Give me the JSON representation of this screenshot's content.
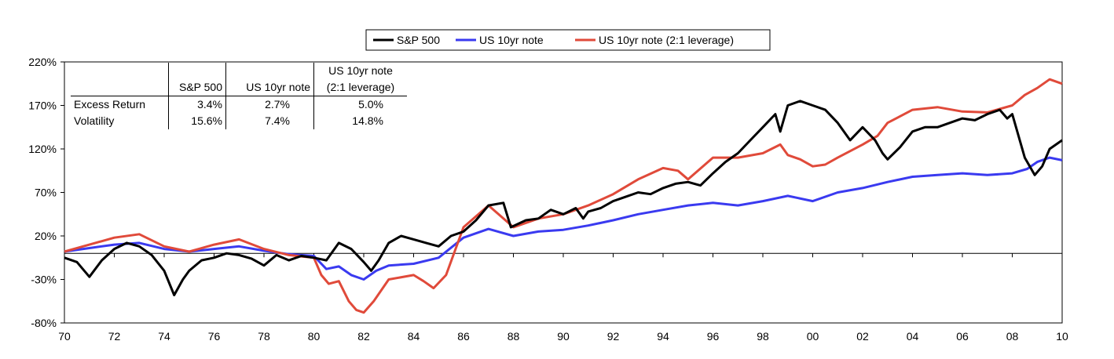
{
  "chart_data": {
    "type": "line",
    "legend": {
      "position": "top",
      "entries": [
        "S&P 500",
        "US 10yr note",
        "US 10yr note (2:1 leverage)"
      ]
    },
    "y_ticks": [
      "220%",
      "170%",
      "120%",
      "70%",
      "20%",
      "-30%",
      "-80%"
    ],
    "x_ticks": [
      "70",
      "72",
      "74",
      "76",
      "78",
      "80",
      "82",
      "84",
      "86",
      "88",
      "90",
      "92",
      "94",
      "96",
      "98",
      "00",
      "02",
      "04",
      "06",
      "08",
      "10"
    ],
    "ylim": [
      -80,
      220
    ],
    "xlim": [
      1970,
      2010
    ],
    "grid": false,
    "series": [
      {
        "name": "S&P 500",
        "color": "#000000",
        "x": [
          1970.0,
          1970.5,
          1971.0,
          1971.5,
          1972.0,
          1972.5,
          1973.0,
          1973.5,
          1974.0,
          1974.4,
          1974.75,
          1975.0,
          1975.5,
          1976.0,
          1976.5,
          1977.0,
          1977.5,
          1978.0,
          1978.5,
          1979.0,
          1979.5,
          1980.0,
          1980.5,
          1981.0,
          1981.5,
          1982.0,
          1982.3,
          1982.6,
          1983.0,
          1983.5,
          1984.0,
          1984.5,
          1985.0,
          1985.5,
          1986.0,
          1986.5,
          1987.0,
          1987.6,
          1987.9,
          1988.5,
          1989.0,
          1989.5,
          1990.0,
          1990.5,
          1990.8,
          1991.0,
          1991.5,
          1992.0,
          1992.5,
          1993.0,
          1993.5,
          1994.0,
          1994.5,
          1995.0,
          1995.5,
          1996.0,
          1996.5,
          1997.0,
          1997.5,
          1998.0,
          1998.5,
          1998.7,
          1999.0,
          1999.5,
          2000.0,
          2000.5,
          2001.0,
          2001.5,
          2002.0,
          2002.5,
          2002.8,
          2003.0,
          2003.5,
          2004.0,
          2004.5,
          2005.0,
          2005.5,
          2006.0,
          2006.5,
          2007.0,
          2007.5,
          2007.8,
          2008.0,
          2008.5,
          2008.9,
          2009.2,
          2009.5,
          2010.0
        ],
        "y": [
          -5,
          -10,
          -27,
          -8,
          5,
          12,
          8,
          -2,
          -20,
          -48,
          -30,
          -20,
          -8,
          -5,
          0,
          -2,
          -6,
          -14,
          -2,
          -8,
          -3,
          -5,
          -8,
          12,
          5,
          -10,
          -20,
          -8,
          12,
          20,
          16,
          12,
          8,
          20,
          25,
          38,
          55,
          58,
          30,
          38,
          40,
          50,
          45,
          52,
          40,
          48,
          52,
          60,
          65,
          70,
          68,
          75,
          80,
          82,
          78,
          92,
          105,
          115,
          130,
          145,
          160,
          140,
          170,
          175,
          170,
          165,
          150,
          130,
          145,
          130,
          115,
          108,
          122,
          140,
          145,
          145,
          150,
          155,
          153,
          160,
          165,
          155,
          160,
          110,
          90,
          100,
          120,
          130
        ]
      },
      {
        "name": "US 10yr note",
        "color": "#3a3af0",
        "x": [
          1970,
          1971,
          1972,
          1973,
          1974,
          1975,
          1976,
          1977,
          1978,
          1979,
          1980,
          1980.5,
          1981,
          1981.5,
          1982,
          1982.5,
          1983,
          1984,
          1985,
          1986,
          1987,
          1988,
          1989,
          1990,
          1991,
          1992,
          1993,
          1994,
          1995,
          1996,
          1997,
          1998,
          1999,
          2000,
          2001,
          2002,
          2003,
          2004,
          2005,
          2006,
          2007,
          2008,
          2008.6,
          2009,
          2009.5,
          2010
        ],
        "y": [
          2,
          6,
          10,
          12,
          5,
          2,
          5,
          8,
          3,
          -1,
          -3,
          -18,
          -15,
          -25,
          -30,
          -20,
          -14,
          -12,
          -5,
          18,
          28,
          20,
          25,
          27,
          32,
          38,
          45,
          50,
          55,
          58,
          55,
          60,
          66,
          60,
          70,
          75,
          82,
          88,
          90,
          92,
          90,
          92,
          97,
          105,
          110,
          107
        ]
      },
      {
        "name": "US 10yr note (2:1 leverage)",
        "color": "#e04a3a",
        "x": [
          1970,
          1971,
          1972,
          1973,
          1974,
          1975,
          1976,
          1977,
          1978,
          1979,
          1980,
          1980.3,
          1980.6,
          1981,
          1981.4,
          1981.7,
          1982,
          1982.4,
          1983,
          1984,
          1984.4,
          1984.8,
          1985.3,
          1986,
          1987,
          1988,
          1989,
          1990,
          1991,
          1992,
          1993,
          1994,
          1994.6,
          1995,
          1996,
          1997,
          1998,
          1998.7,
          1999,
          1999.5,
          2000,
          2000.5,
          2001,
          2002,
          2002.6,
          2003,
          2004,
          2005,
          2006,
          2007,
          2008,
          2008.5,
          2009,
          2009.5,
          2010
        ],
        "y": [
          2,
          10,
          18,
          22,
          8,
          2,
          10,
          16,
          5,
          -2,
          -5,
          -25,
          -35,
          -32,
          -55,
          -65,
          -68,
          -55,
          -30,
          -25,
          -32,
          -40,
          -25,
          30,
          55,
          30,
          40,
          45,
          55,
          68,
          85,
          98,
          95,
          85,
          110,
          110,
          115,
          125,
          113,
          108,
          100,
          102,
          110,
          125,
          135,
          150,
          165,
          168,
          163,
          162,
          170,
          182,
          190,
          200,
          195
        ]
      }
    ]
  },
  "table": {
    "headers": [
      "",
      "S&P 500",
      "US 10yr note",
      "US 10yr note"
    ],
    "header_sub": "(2:1 leverage)",
    "rows": [
      {
        "label": "Excess Return",
        "values": [
          "3.4%",
          "2.7%",
          "5.0%"
        ]
      },
      {
        "label": "Volatility",
        "values": [
          "15.6%",
          "7.4%",
          "14.8%"
        ]
      }
    ]
  }
}
